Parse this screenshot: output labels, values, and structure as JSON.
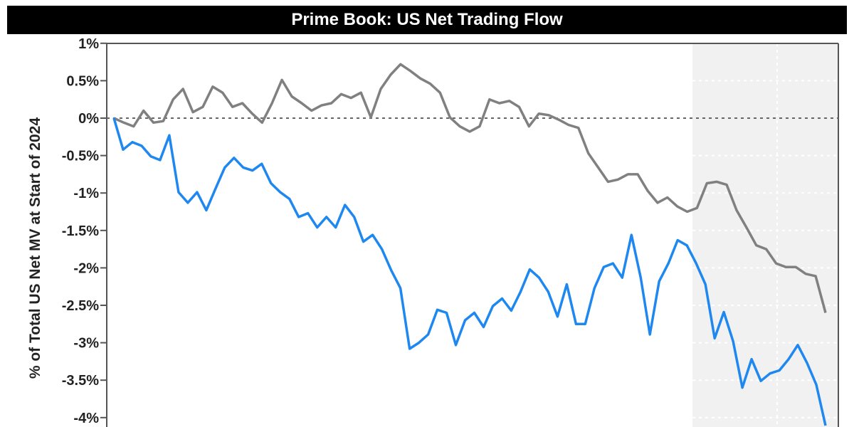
{
  "chart_data": {
    "type": "line",
    "title": "Prime Book: US Net Trading Flow",
    "ylabel": "% of Total US Net MV at Start of 2024",
    "xlabel": "",
    "ylim": [
      -4.5,
      1
    ],
    "yticks": [
      "1%",
      "0.5%",
      "0%",
      "-0.5%",
      "-1%",
      "-1.5%",
      "-2%",
      "-2.5%",
      "-3%",
      "-3.5%",
      "-4%"
    ],
    "ytick_values": [
      1,
      0.5,
      0,
      -0.5,
      -1,
      -1.5,
      -2,
      -2.5,
      -3,
      -3.5,
      -4
    ],
    "grid": false,
    "reference_line": 0,
    "shaded_region": "right end of the x range",
    "colors": {
      "gray_series": "#808080",
      "blue_series": "#1e88f0",
      "shade": "#f1f1f1",
      "title_bg": "#000000"
    },
    "series": [
      {
        "color": "#808080",
        "values": [
          0,
          -0.06,
          -0.11,
          0.1,
          -0.06,
          -0.04,
          0.25,
          0.39,
          0.08,
          0.15,
          0.42,
          0.34,
          0.15,
          0.2,
          0.06,
          -0.06,
          0.2,
          0.51,
          0.29,
          0.2,
          0.1,
          0.17,
          0.2,
          0.32,
          0.27,
          0.34,
          0.01,
          0.39,
          0.58,
          0.72,
          0.63,
          0.53,
          0.46,
          0.34,
          0.01,
          -0.11,
          -0.18,
          -0.11,
          0.25,
          0.2,
          0.23,
          0.15,
          -0.11,
          0.06,
          0.04,
          -0.02,
          -0.09,
          -0.13,
          -0.47,
          -0.66,
          -0.85,
          -0.82,
          -0.75,
          -0.75,
          -0.97,
          -1.13,
          -1.06,
          -1.18,
          -1.25,
          -1.2,
          -0.87,
          -0.85,
          -0.89,
          -1.23,
          -1.46,
          -1.7,
          -1.75,
          -1.94,
          -1.99,
          -1.99,
          -2.08,
          -2.11,
          -2.6
        ]
      },
      {
        "color": "#1e88f0",
        "values": [
          0,
          -0.42,
          -0.32,
          -0.37,
          -0.51,
          -0.56,
          -0.23,
          -0.99,
          -1.13,
          -0.99,
          -1.23,
          -0.94,
          -0.66,
          -0.53,
          -0.66,
          -0.7,
          -0.61,
          -0.87,
          -0.99,
          -1.08,
          -1.32,
          -1.27,
          -1.46,
          -1.32,
          -1.46,
          -1.16,
          -1.32,
          -1.65,
          -1.56,
          -1.75,
          -2.03,
          -2.27,
          -3.08,
          -3.0,
          -2.89,
          -2.56,
          -2.6,
          -3.03,
          -2.7,
          -2.6,
          -2.79,
          -2.51,
          -2.41,
          -2.57,
          -2.32,
          -2.02,
          -2.13,
          -2.32,
          -2.65,
          -2.22,
          -2.75,
          -2.75,
          -2.27,
          -1.99,
          -1.94,
          -2.13,
          -1.56,
          -2.13,
          -2.89,
          -2.18,
          -1.94,
          -1.63,
          -1.7,
          -1.94,
          -2.22,
          -2.94,
          -2.59,
          -2.98,
          -3.6,
          -3.22,
          -3.51,
          -3.41,
          -3.37,
          -3.22,
          -3.03,
          -3.27,
          -3.56,
          -4.13
        ]
      }
    ]
  }
}
